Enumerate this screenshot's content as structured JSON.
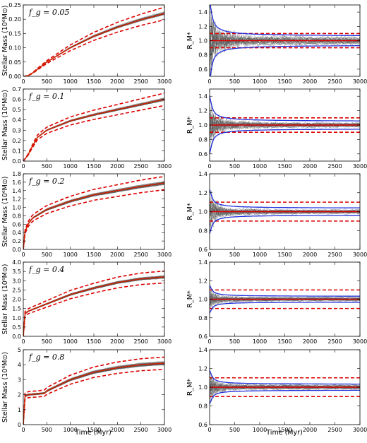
{
  "figure": {
    "xlabel": "Time (Myr)",
    "left_ylabel": "Stellar Mass (10⁶M⊙)",
    "right_ylabel": "R_M*",
    "colors": {
      "sims": "#555555",
      "median": "#cc2200",
      "bounds": "#dd0000",
      "blue": "#2030dd"
    }
  },
  "chart_data": [
    {
      "type": "line",
      "panel": "left",
      "fg_label": "f_g = 0.05",
      "xlim": [
        0,
        3000
      ],
      "ylim": [
        0,
        0.25
      ],
      "xticks": [
        "0",
        "500",
        "1000",
        "1500",
        "2000",
        "2500",
        "3000"
      ],
      "yticks": [
        "0.00",
        "0.05",
        "0.10",
        "0.15",
        "0.20",
        "0.25"
      ],
      "series": [
        {
          "x": [
            0,
            100,
            200,
            500,
            1000,
            1500,
            2000,
            2500,
            3000
          ],
          "y": [
            0,
            0.002,
            0.012,
            0.05,
            0.1,
            0.14,
            0.172,
            0.198,
            0.22
          ]
        }
      ]
    },
    {
      "type": "line",
      "panel": "right",
      "xlim": [
        0,
        3000
      ],
      "ylim": [
        0.5,
        1.5
      ],
      "xticks": [
        "0",
        "500",
        "1000",
        "1500",
        "2000",
        "2500",
        "3000"
      ],
      "yticks": [
        "0.6",
        "0.8",
        "1.0",
        "1.2",
        "1.4"
      ],
      "reference": [
        0.9,
        1.0,
        1.1
      ]
    },
    {
      "type": "line",
      "panel": "left",
      "fg_label": "f_g = 0.1",
      "xlim": [
        0,
        3000
      ],
      "ylim": [
        0,
        0.7
      ],
      "xticks": [
        "0",
        "500",
        "1000",
        "1500",
        "2000",
        "2500",
        "3000"
      ],
      "yticks": [
        "0.0",
        "0.1",
        "0.2",
        "0.3",
        "0.4",
        "0.5",
        "0.6",
        "0.7"
      ],
      "series": [
        {
          "x": [
            0,
            100,
            200,
            300,
            500,
            1000,
            1500,
            2000,
            2500,
            3000
          ],
          "y": [
            0,
            0.06,
            0.15,
            0.23,
            0.3,
            0.39,
            0.45,
            0.5,
            0.55,
            0.6
          ]
        }
      ]
    },
    {
      "type": "line",
      "panel": "right",
      "xlim": [
        0,
        3000
      ],
      "ylim": [
        0.5,
        1.5
      ],
      "xticks": [
        "0",
        "500",
        "1000",
        "1500",
        "2000",
        "2500",
        "3000"
      ],
      "yticks": [
        "0.6",
        "0.8",
        "1.0",
        "1.2",
        "1.4"
      ],
      "reference": [
        0.9,
        1.0,
        1.1
      ]
    },
    {
      "type": "line",
      "panel": "left",
      "fg_label": "f_g = 0.2",
      "xlim": [
        0,
        3000
      ],
      "ylim": [
        0,
        1.8
      ],
      "xticks": [
        "0",
        "500",
        "1000",
        "1500",
        "2000",
        "2500",
        "3000"
      ],
      "yticks": [
        "0.0",
        "0.2",
        "0.4",
        "0.6",
        "0.8",
        "1.0",
        "1.2",
        "1.4",
        "1.6",
        "1.8"
      ],
      "series": [
        {
          "x": [
            0,
            30,
            100,
            200,
            500,
            1000,
            1500,
            2000,
            2500,
            3000
          ],
          "y": [
            0,
            0.4,
            0.6,
            0.75,
            0.95,
            1.15,
            1.3,
            1.4,
            1.5,
            1.58
          ]
        }
      ]
    },
    {
      "type": "line",
      "panel": "right",
      "xlim": [
        0,
        3000
      ],
      "ylim": [
        0.6,
        1.4
      ],
      "xticks": [
        "0",
        "500",
        "1000",
        "1500",
        "2000",
        "2500",
        "3000"
      ],
      "yticks": [
        "0.6",
        "0.8",
        "1.0",
        "1.2",
        "1.4"
      ],
      "reference": [
        0.9,
        1.0,
        1.1
      ]
    },
    {
      "type": "line",
      "panel": "left",
      "fg_label": "f_g = 0.4",
      "xlim": [
        0,
        3000
      ],
      "ylim": [
        0,
        4.0
      ],
      "xticks": [
        "0",
        "500",
        "1000",
        "1500",
        "2000",
        "2500",
        "3000"
      ],
      "yticks": [
        "0.0",
        "0.5",
        "1.0",
        "1.5",
        "2.0",
        "2.5",
        "3.0",
        "3.5",
        "4.0"
      ],
      "series": [
        {
          "x": [
            0,
            30,
            100,
            300,
            500,
            1000,
            1500,
            2000,
            2500,
            3000
          ],
          "y": [
            0,
            1.2,
            1.35,
            1.55,
            1.75,
            2.25,
            2.6,
            2.9,
            3.1,
            3.2
          ]
        }
      ]
    },
    {
      "type": "line",
      "panel": "right",
      "xlim": [
        0,
        3000
      ],
      "ylim": [
        0.6,
        1.4
      ],
      "xticks": [
        "0",
        "500",
        "1000",
        "1500",
        "2000",
        "2500",
        "3000"
      ],
      "yticks": [
        "0.6",
        "0.8",
        "1.0",
        "1.2",
        "1.4"
      ],
      "reference": [
        0.9,
        1.0,
        1.1
      ]
    },
    {
      "type": "line",
      "panel": "left",
      "fg_label": "f_g = 0.8",
      "xlim": [
        0,
        3000
      ],
      "ylim": [
        0,
        5
      ],
      "xticks": [
        "0",
        "500",
        "1000",
        "1500",
        "2000",
        "2500",
        "3000"
      ],
      "yticks": [
        "0",
        "1",
        "2",
        "3",
        "4",
        "5"
      ],
      "series": [
        {
          "x": [
            0,
            30,
            100,
            300,
            450,
            500,
            1000,
            1500,
            2000,
            2500,
            3000
          ],
          "y": [
            0,
            1.9,
            2.0,
            2.05,
            2.1,
            2.25,
            3.0,
            3.5,
            3.8,
            4.0,
            4.1
          ]
        }
      ]
    },
    {
      "type": "line",
      "panel": "right",
      "xlim": [
        0,
        3000
      ],
      "ylim": [
        0.6,
        1.4
      ],
      "xticks": [
        "0",
        "500",
        "1000",
        "1500",
        "2000",
        "2500",
        "3000"
      ],
      "yticks": [
        "0.6",
        "0.8",
        "1.0",
        "1.2",
        "1.4"
      ],
      "reference": [
        0.9,
        1.0,
        1.1
      ]
    }
  ]
}
